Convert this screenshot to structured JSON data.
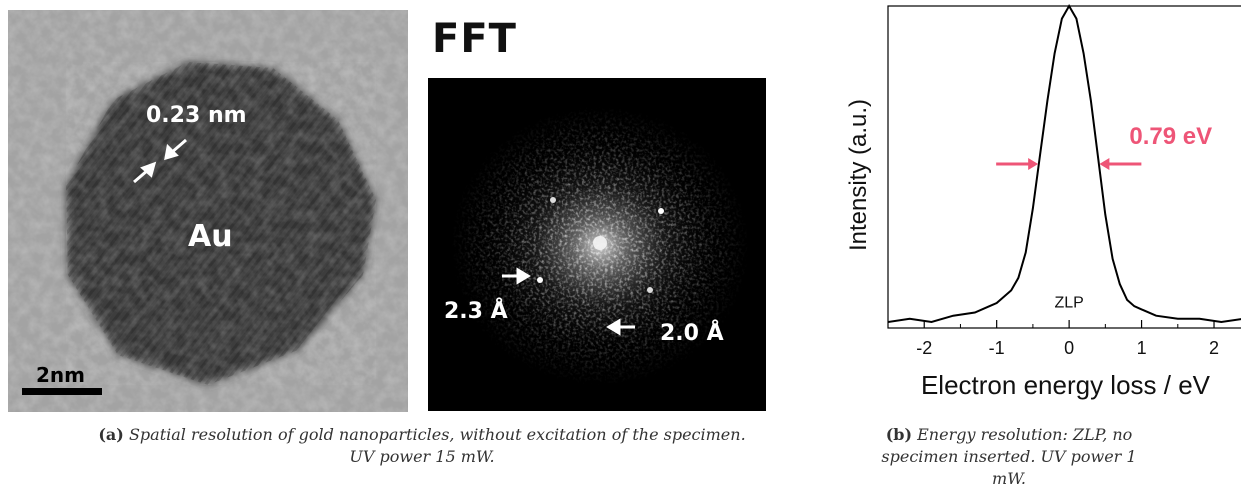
{
  "figure_a": {
    "tem": {
      "lattice_label": "0.23 nm",
      "particle_label": "Au",
      "scalebar_label": "2nm"
    },
    "fft": {
      "title": "FFT",
      "spot_label_1": "2.3 Å",
      "spot_label_2": "2.0 Å"
    },
    "caption": {
      "tag": "(a)",
      "text": "Spatial resolution of gold nanoparticles, without excitation of the specimen. UV power 15 mW."
    }
  },
  "figure_b": {
    "caption": {
      "tag": "(b)",
      "text": "Energy resolution: ZLP, no specimen inserted. UV power 1 mW."
    }
  },
  "colors": {
    "annotation_red": "#ee5577",
    "line": "#000000"
  },
  "chart_data": {
    "type": "line",
    "title": "",
    "xlabel": "Electron energy loss / eV",
    "ylabel": "Intensity (a.u.)",
    "xlim": [
      -2.5,
      2.4
    ],
    "ylim": [
      0,
      1.0
    ],
    "xticks": [
      -2,
      -1,
      0,
      1,
      2
    ],
    "xtick_labels": [
      "-2",
      "-1",
      "0",
      "1",
      "2"
    ],
    "series": [
      {
        "x": [
          -2.5,
          -2.2,
          -1.9,
          -1.6,
          -1.3,
          -1.1,
          -1.0,
          -0.9,
          -0.8,
          -0.7,
          -0.6,
          -0.5,
          -0.4,
          -0.3,
          -0.2,
          -0.1,
          0.0,
          0.1,
          0.2,
          0.3,
          0.4,
          0.5,
          0.6,
          0.7,
          0.8,
          0.9,
          1.0,
          1.2,
          1.5,
          1.8,
          2.1,
          2.4
        ],
        "y": [
          0.0,
          0.01,
          0.0,
          0.02,
          0.03,
          0.05,
          0.06,
          0.08,
          0.1,
          0.14,
          0.22,
          0.36,
          0.53,
          0.7,
          0.85,
          0.96,
          1.0,
          0.96,
          0.85,
          0.7,
          0.52,
          0.34,
          0.2,
          0.12,
          0.07,
          0.05,
          0.04,
          0.02,
          0.01,
          0.01,
          0.0,
          0.01
        ]
      }
    ],
    "annotations": [
      {
        "text": "ZLP",
        "x": 0.0,
        "y": 0.04
      },
      {
        "text": "0.79 eV",
        "kind": "fwhm",
        "x_left": -0.4,
        "x_right": 0.39,
        "y": 0.5
      }
    ]
  }
}
